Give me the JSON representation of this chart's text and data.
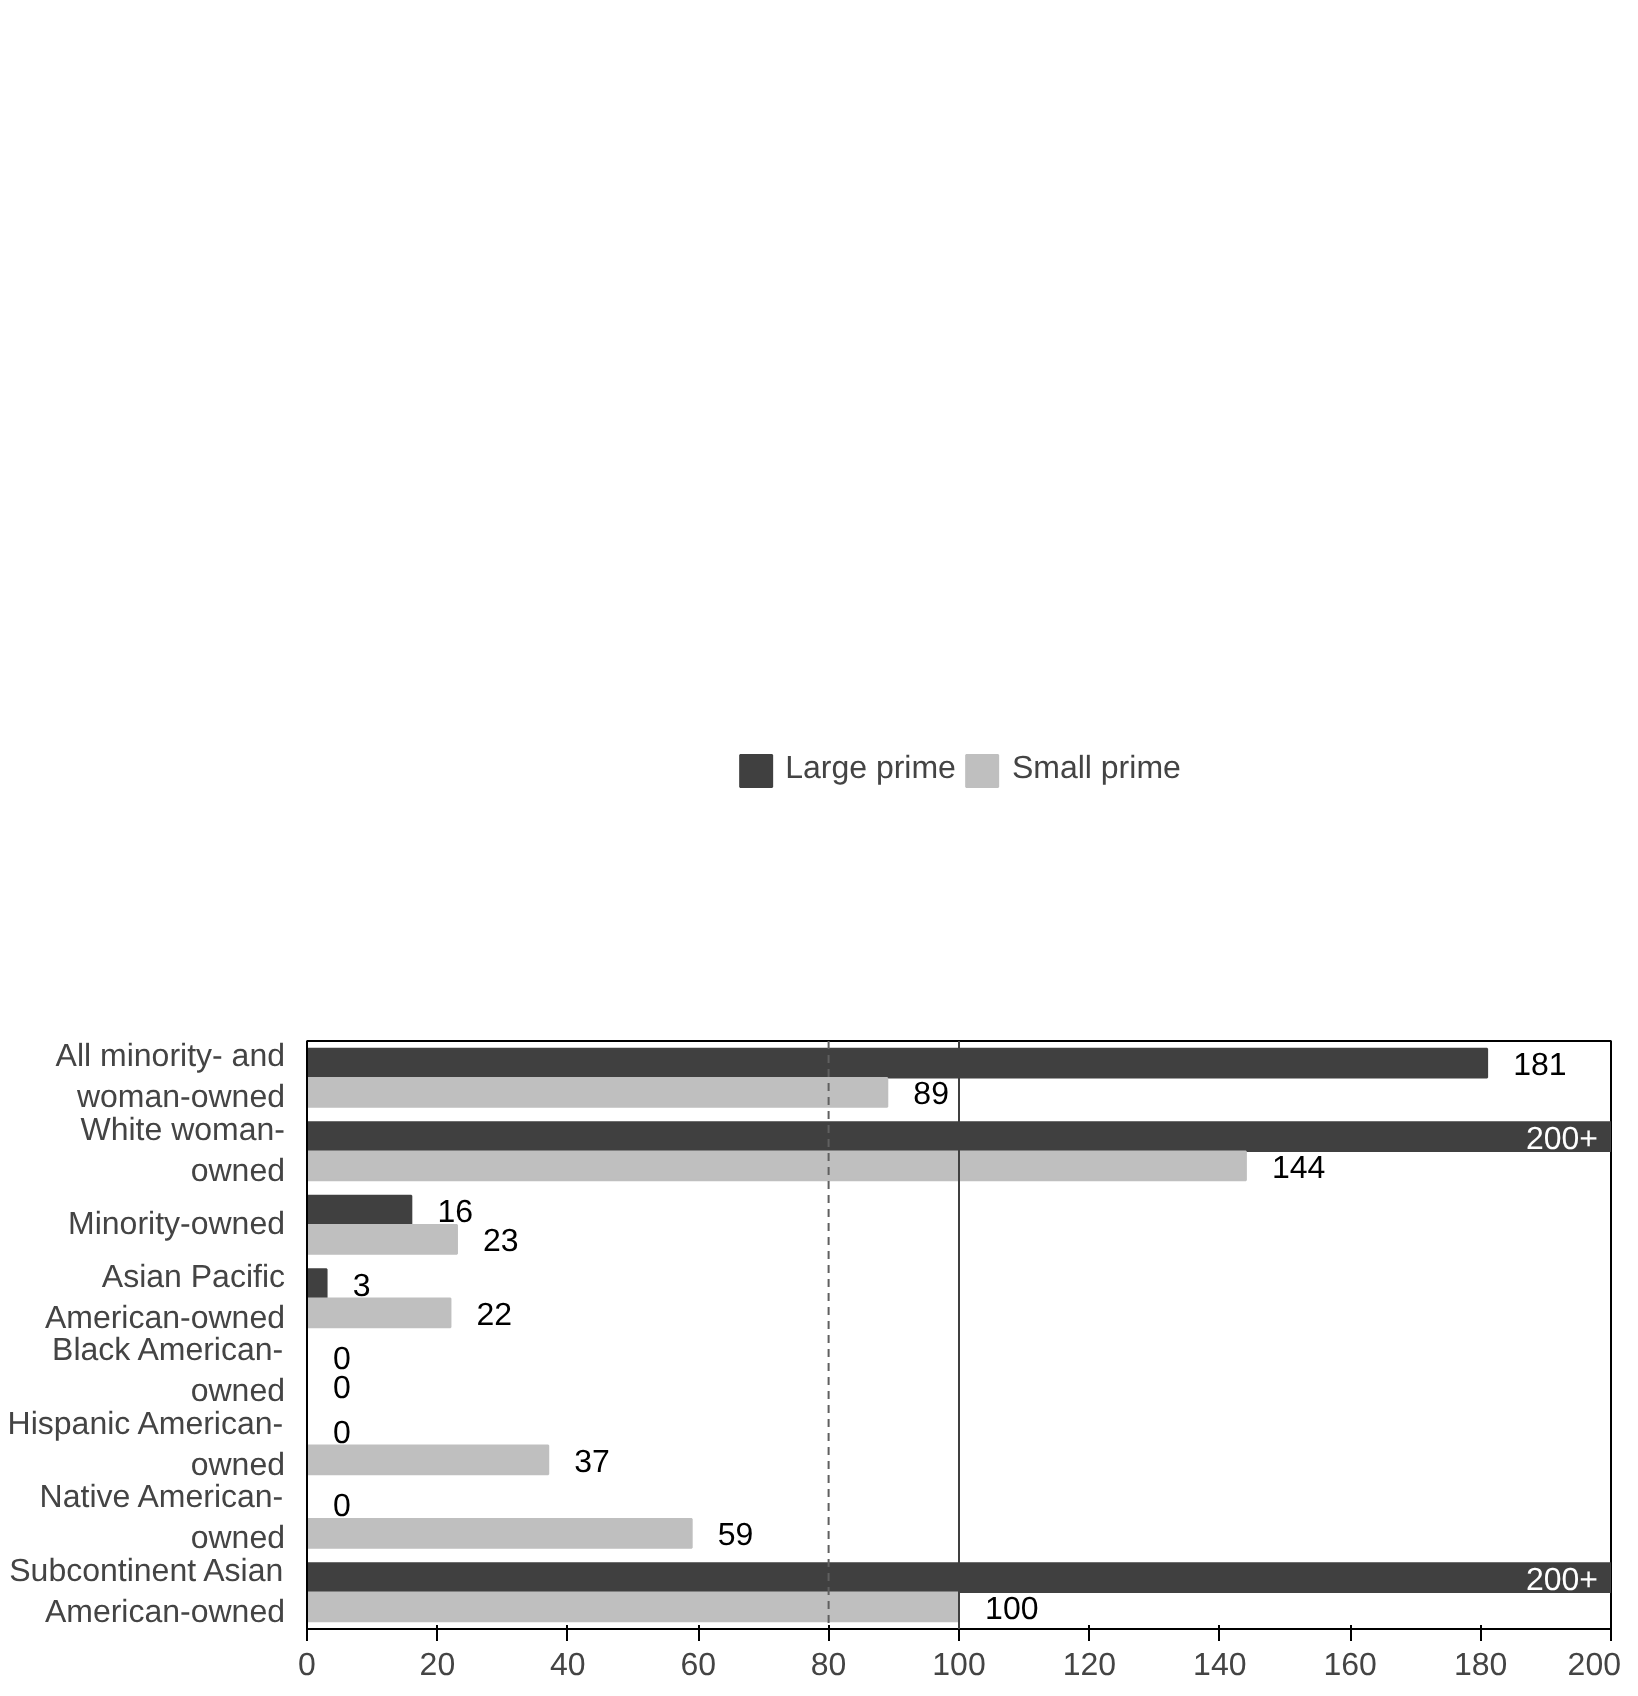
{
  "chart_data": {
    "type": "bar",
    "orientation": "horizontal",
    "categories": [
      "All minority- and\nwoman-owned",
      "White woman-\nowned",
      "Minority-owned",
      "Asian Pacific\nAmerican-owned",
      "Black American-\nowned",
      "Hispanic American-\nowned",
      "Native American-\nowned",
      "Subcontinent Asian\nAmerican-owned"
    ],
    "series": [
      {
        "name": "Large prime",
        "color": "#404040",
        "values": [
          181,
          200,
          16,
          3,
          0,
          0,
          0,
          200
        ],
        "value_labels": [
          "181",
          "200+",
          "16",
          "3",
          "0",
          "0",
          "0",
          "200+"
        ]
      },
      {
        "name": "Small prime",
        "color": "#bfbfbf",
        "values": [
          89,
          144,
          23,
          22,
          0,
          37,
          59,
          100
        ],
        "value_labels": [
          "89",
          "144",
          "23",
          "22",
          "0",
          "37",
          "59",
          "100"
        ]
      }
    ],
    "xlim": [
      0,
      200
    ],
    "xticks": [
      0,
      20,
      40,
      60,
      80,
      100,
      120,
      140,
      160,
      180,
      200
    ],
    "ref_lines": [
      {
        "axis": "x",
        "value": 80,
        "line_style": "dashed",
        "color": "#606060"
      },
      {
        "axis": "x",
        "value": 100,
        "line_style": "solid",
        "color": "#404040"
      }
    ],
    "grid": false,
    "legend": "top"
  }
}
